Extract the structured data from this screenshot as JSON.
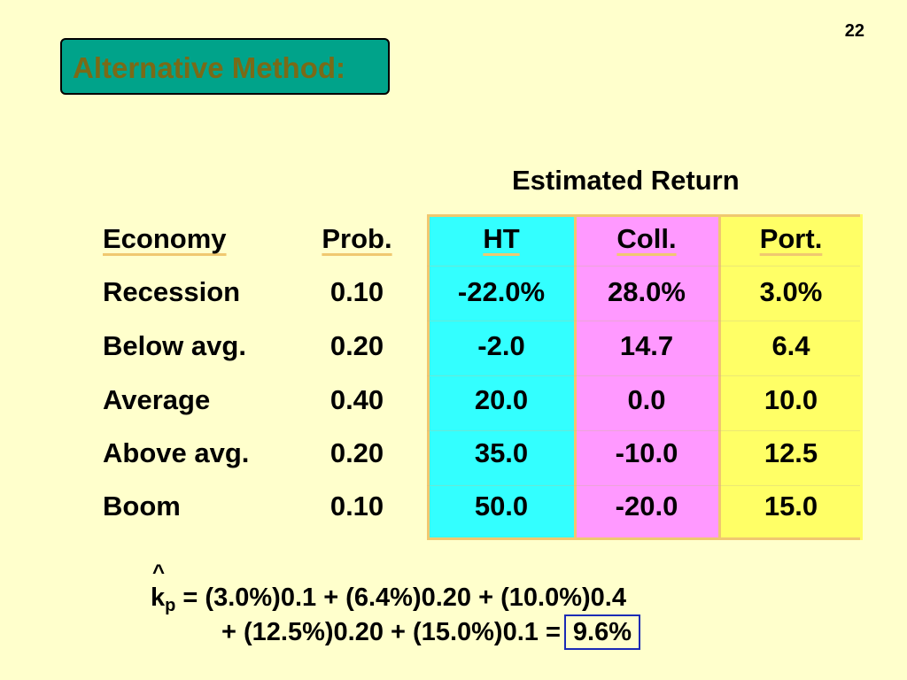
{
  "page_number": "22",
  "title": "Alternative Method:",
  "group_header": "Estimated Return",
  "table": {
    "headers": {
      "economy": "Economy",
      "prob": "Prob.",
      "ht": "HT",
      "coll": "Coll.",
      "port": "Port."
    },
    "rows": [
      {
        "economy": "Recession",
        "prob": "0.10",
        "ht": "-22.0%",
        "coll": "28.0%",
        "port": "3.0%"
      },
      {
        "economy": "Below avg.",
        "prob": "0.20",
        "ht": "-2.0",
        "coll": "14.7",
        "port": "6.4"
      },
      {
        "economy": "Average",
        "prob": "0.40",
        "ht": "20.0",
        "coll": "0.0",
        "port": "10.0"
      },
      {
        "economy": "Above avg.",
        "prob": "0.20",
        "ht": "35.0",
        "coll": "-10.0",
        "port": "12.5"
      },
      {
        "economy": "Boom",
        "prob": "0.10",
        "ht": "50.0",
        "coll": "-20.0",
        "port": "15.0"
      }
    ]
  },
  "formula": {
    "hat": "^",
    "k": "k",
    "subscript": "p",
    "line1_rest": " = (3.0%)0.1 + (6.4%)0.20 + (10.0%)0.4",
    "line2": "+ (12.5%)0.20 + (15.0%)0.1 =",
    "result": "9.6%"
  },
  "colors": {
    "background": "#ffffcc",
    "title_box": "#00a38a",
    "title_text": "#7a6a17",
    "ht_column": "#33ffff",
    "coll_column": "#ff99ff",
    "port_column": "#ffff66",
    "result_box_border": "#1b2bb5"
  }
}
